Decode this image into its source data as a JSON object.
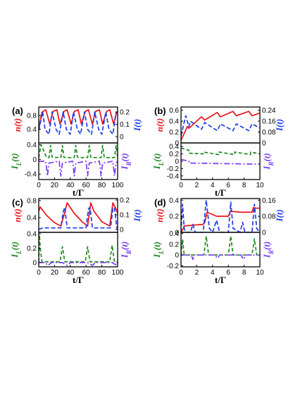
{
  "colors": {
    "n": "#e8141b",
    "I": "#1f3de6",
    "IL": "#1f8a1f",
    "IR": "#7a3df0"
  },
  "chart_data": [
    {
      "type": "line",
      "panel_label": "(a)",
      "xlabel": "t/Γ",
      "xlim": [
        0,
        100
      ],
      "x_ticks": [
        "0",
        "20",
        "40",
        "60",
        "80",
        "100"
      ],
      "top_left_axis": {
        "label": "n(t)",
        "ylim": [
          0.0,
          1.05
        ],
        "ticks": [
          "0.8",
          "0.4"
        ],
        "tick_values": [
          0.8,
          0.4
        ]
      },
      "top_right_axis": {
        "label": "I(t)",
        "ylim": [
          -0.05,
          0.24
        ],
        "ticks": [
          "0.2",
          "0.1",
          "0"
        ],
        "tick_values": [
          0.2,
          0.1,
          0
        ]
      },
      "bottom_left_axis": {
        "label": "I_L(t)",
        "ylim": [
          -0.55,
          0.45
        ],
        "ticks": [
          "0.4",
          "0",
          "-0.4"
        ],
        "tick_values": [
          0.4,
          0,
          -0.4
        ]
      },
      "bottom_right_axis": {
        "label": "I_R(t)"
      },
      "series": [
        {
          "name": "n(t)",
          "key": "n",
          "axis": "top_left",
          "x": [
            0,
            4,
            9,
            14,
            18,
            23,
            27,
            32,
            36,
            41,
            45,
            50,
            54,
            59,
            63,
            68,
            72,
            77,
            81,
            86,
            90,
            95,
            99
          ],
          "y": [
            0.4,
            0.9,
            0.97,
            0.55,
            0.92,
            0.97,
            0.55,
            0.92,
            0.97,
            0.55,
            0.92,
            0.97,
            0.55,
            0.92,
            0.97,
            0.55,
            0.92,
            0.97,
            0.55,
            0.92,
            0.97,
            0.55,
            0.92
          ]
        },
        {
          "name": "I(t)",
          "key": "I",
          "axis": "top_right",
          "x": [
            0,
            5,
            8,
            13,
            17,
            22,
            26,
            31,
            35,
            40,
            44,
            49,
            53,
            58,
            62,
            67,
            71,
            76,
            80,
            85,
            89,
            94,
            98
          ],
          "y": [
            0.05,
            0.2,
            0.06,
            0.02,
            0.2,
            0.06,
            0.02,
            0.2,
            0.06,
            0.02,
            0.2,
            0.06,
            0.02,
            0.2,
            0.06,
            0.02,
            0.2,
            0.06,
            0.02,
            0.2,
            0.06,
            0.02,
            0.2
          ]
        },
        {
          "name": "I_L(t)",
          "key": "IL",
          "axis": "bottom_left",
          "x": [
            0,
            3,
            10,
            13,
            15,
            17,
            28,
            30,
            32,
            34,
            45,
            47,
            49,
            51,
            62,
            64,
            66,
            68,
            79,
            81,
            83,
            85,
            96,
            98,
            100
          ],
          "y": [
            0.05,
            0.4,
            0.05,
            0.05,
            0.38,
            0.06,
            0.05,
            0.38,
            0.06,
            0.05,
            0.05,
            0.38,
            0.06,
            0.05,
            0.05,
            0.38,
            0.06,
            0.05,
            0.05,
            0.38,
            0.06,
            0.05,
            0.05,
            0.38,
            0.06
          ]
        },
        {
          "name": "I_R(t)",
          "key": "IR",
          "axis": "bottom_left",
          "x": [
            0,
            9,
            11,
            13,
            26,
            28,
            30,
            43,
            45,
            47,
            60,
            62,
            64,
            77,
            79,
            81,
            94,
            96,
            98,
            100
          ],
          "y": [
            -0.05,
            -0.05,
            -0.45,
            -0.1,
            -0.05,
            -0.45,
            -0.1,
            -0.05,
            -0.45,
            -0.1,
            -0.05,
            -0.45,
            -0.1,
            -0.05,
            -0.45,
            -0.1,
            -0.05,
            -0.45,
            -0.1,
            -0.05
          ]
        }
      ]
    },
    {
      "type": "line",
      "panel_label": "(b)",
      "xlabel": "t/Γ",
      "xlim": [
        0,
        10
      ],
      "x_ticks": [
        "0",
        "2",
        "4",
        "6",
        "8",
        "10"
      ],
      "top_left_axis": {
        "label": "n(t)",
        "ylim": [
          0,
          0.66
        ],
        "ticks": [
          "0.6",
          "0.4",
          "0.2",
          "0"
        ],
        "tick_values": [
          0.6,
          0.4,
          0.2,
          0
        ]
      },
      "top_right_axis": {
        "label": "I(t)",
        "ylim": [
          0,
          0.264
        ],
        "ticks": [
          "0.24",
          "0.16",
          "0.08",
          "0"
        ],
        "tick_values": [
          0.24,
          0.16,
          0.08,
          0
        ]
      },
      "bottom_left_axis": {
        "label": "I_L(t)",
        "ylim": [
          -0.5,
          0.5
        ],
        "ticks": [
          "0.4",
          "0.2",
          "0",
          "-0.2",
          "-0.4"
        ],
        "tick_values": [
          0.4,
          0.2,
          0,
          -0.2,
          -0.4
        ]
      },
      "bottom_right_axis": {
        "label": "I_R(t)"
      },
      "series": [
        {
          "name": "n(t)",
          "key": "n",
          "axis": "top_left",
          "x": [
            0,
            0.8,
            1.0,
            2.6,
            3.0,
            4.6,
            5.0,
            6.6,
            7.0,
            8.6,
            9.0,
            10
          ],
          "y": [
            0.05,
            0.3,
            0.27,
            0.48,
            0.42,
            0.56,
            0.48,
            0.58,
            0.5,
            0.58,
            0.5,
            0.55
          ]
        },
        {
          "name": "I(t)",
          "key": "I",
          "axis": "top_right",
          "x": [
            0,
            0.6,
            1.0,
            1.2,
            2.6,
            3.0,
            4.6,
            5.0,
            6.6,
            7.0,
            8.6,
            9.0,
            10
          ],
          "y": [
            0.05,
            0.2,
            0.12,
            0.16,
            0.1,
            0.15,
            0.09,
            0.14,
            0.09,
            0.14,
            0.09,
            0.14,
            0.11
          ]
        },
        {
          "name": "I_L(t)",
          "key": "IL",
          "axis": "bottom_left",
          "x": [
            0,
            0.2,
            1.0,
            1.02,
            2.8,
            2.82,
            4.8,
            4.82,
            6.8,
            6.82,
            8.8,
            8.82,
            10
          ],
          "y": [
            0.35,
            0.35,
            0.3,
            0.22,
            0.2,
            0.25,
            0.18,
            0.25,
            0.18,
            0.25,
            0.18,
            0.25,
            0.2
          ]
        },
        {
          "name": "I_R(t)",
          "key": "IR",
          "axis": "bottom_left",
          "x": [
            0,
            1.0,
            1.02,
            10
          ],
          "y": [
            0.05,
            0.0,
            -0.05,
            -0.08
          ]
        }
      ]
    },
    {
      "type": "line",
      "panel_label": "(c)",
      "xlabel": "t/Γ",
      "xlim": [
        0,
        100
      ],
      "x_ticks": [
        "0",
        "20",
        "40",
        "60",
        "80",
        "100"
      ],
      "top_left_axis": {
        "label": "n(t)",
        "ylim": [
          0.05,
          0.85
        ],
        "ticks": [
          "0.8",
          "0.4"
        ],
        "tick_values": [
          0.8,
          0.4
        ]
      },
      "top_right_axis": {
        "label": "I(t)",
        "ylim": [
          -0.02,
          0.21
        ],
        "ticks": [
          "0.2",
          "0.1",
          "0"
        ],
        "tick_values": [
          0.2,
          0.1,
          0
        ]
      },
      "bottom_left_axis": {
        "label": "I_L(t)",
        "ylim": [
          -0.06,
          0.42
        ],
        "ticks": [
          "0.4",
          "0.2",
          "0"
        ],
        "tick_values": [
          0.4,
          0.2,
          0
        ]
      },
      "bottom_right_axis": {
        "label": "I_R(t)"
      },
      "series": [
        {
          "name": "n(t)",
          "key": "n",
          "axis": "top_left",
          "x": [
            0,
            2,
            10,
            20,
            28,
            32,
            36,
            45,
            55,
            62,
            66,
            70,
            80,
            90,
            94,
            98,
            100
          ],
          "y": [
            0.55,
            0.65,
            0.45,
            0.28,
            0.2,
            0.45,
            0.75,
            0.5,
            0.3,
            0.2,
            0.75,
            0.55,
            0.3,
            0.2,
            0.75,
            0.6,
            0.5
          ]
        },
        {
          "name": "I(t)",
          "key": "I",
          "axis": "top_right",
          "x": [
            0,
            5,
            28,
            31,
            33,
            36,
            60,
            63,
            65,
            68,
            91,
            94,
            96,
            99,
            100
          ],
          "y": [
            0.0,
            0.01,
            0.01,
            0.12,
            0.15,
            0.01,
            0.01,
            0.14,
            0.15,
            0.01,
            0.01,
            0.14,
            0.15,
            0.01,
            0.01
          ]
        },
        {
          "name": "I_L(t)",
          "key": "IL",
          "axis": "bottom_left",
          "x": [
            0,
            1,
            2,
            4,
            27,
            30,
            33,
            59,
            62,
            65,
            90,
            93,
            96,
            100
          ],
          "y": [
            0.01,
            0.38,
            0.2,
            0.01,
            0.01,
            0.22,
            0.01,
            0.01,
            0.22,
            0.01,
            0.01,
            0.24,
            0.01,
            0.01
          ]
        },
        {
          "name": "I_R(t)",
          "key": "IR",
          "axis": "bottom_left",
          "x": [
            0,
            8,
            12,
            16,
            30,
            36,
            40,
            62,
            68,
            72,
            93,
            99,
            100
          ],
          "y": [
            0.0,
            0.0,
            -0.04,
            0.0,
            0.0,
            -0.04,
            0.0,
            0.0,
            -0.04,
            0.0,
            0.0,
            -0.04,
            0.0
          ]
        }
      ]
    },
    {
      "type": "line",
      "panel_label": "(d)",
      "xlabel": "t/Γ",
      "xlim": [
        0,
        10
      ],
      "x_ticks": [
        "0",
        "2",
        "4",
        "6",
        "8",
        "10"
      ],
      "top_left_axis": {
        "label": "n(t)",
        "ylim": [
          0,
          0.42
        ],
        "ticks": [
          "0.4",
          "0.2",
          "0"
        ],
        "tick_values": [
          0.4,
          0.2,
          0
        ]
      },
      "top_right_axis": {
        "label": "I(t)",
        "ylim": [
          0,
          0.168
        ],
        "ticks": [
          "0.16",
          "0.08",
          "0"
        ],
        "tick_values": [
          0.16,
          0.08,
          0
        ]
      },
      "bottom_left_axis": {
        "label": "I_L(t)",
        "ylim": [
          -0.22,
          0.42
        ],
        "ticks": [
          "0.4",
          "0.2",
          "0",
          "-0.2"
        ],
        "tick_values": [
          0.4,
          0.2,
          0,
          -0.2
        ]
      },
      "bottom_right_axis": {
        "label": "I_R(t)"
      },
      "series": [
        {
          "name": "n(t)",
          "key": "n",
          "axis": "top_left",
          "x": [
            0,
            0.3,
            0.4,
            2.8,
            3.0,
            3.3,
            4.5,
            6.0,
            6.3,
            6.5,
            7.5,
            9.0,
            9.2,
            9.5,
            10
          ],
          "y": [
            0.0,
            0.05,
            0.08,
            0.1,
            0.12,
            0.25,
            0.2,
            0.2,
            0.27,
            0.26,
            0.25,
            0.25,
            0.31,
            0.3,
            0.3
          ]
        },
        {
          "name": "I(t)",
          "key": "I",
          "axis": "top_right",
          "x": [
            0,
            0.2,
            0.4,
            0.6,
            1.2,
            1.5,
            1.8,
            2.8,
            3.2,
            3.6,
            4.0,
            4.5,
            4.9,
            6.0,
            6.3,
            6.6,
            7.5,
            7.8,
            8.1,
            9.0,
            9.3,
            9.6,
            10
          ],
          "y": [
            0.0,
            0.14,
            0.02,
            0.0,
            0.0,
            0.04,
            0.0,
            0.0,
            0.16,
            0.02,
            0.0,
            0.06,
            0.0,
            0.0,
            0.15,
            0.02,
            0.0,
            0.05,
            0.0,
            0.0,
            0.14,
            0.02,
            0.0
          ]
        },
        {
          "name": "I_L(t)",
          "key": "IL",
          "axis": "bottom_left",
          "x": [
            0,
            0.2,
            0.4,
            2.9,
            3.2,
            3.5,
            6.0,
            6.3,
            6.6,
            9.0,
            9.3,
            9.6,
            10
          ],
          "y": [
            0.0,
            0.3,
            0.0,
            0.0,
            0.35,
            0.0,
            0.0,
            0.35,
            0.0,
            0.0,
            0.3,
            0.0,
            0.0
          ]
        },
        {
          "name": "I_R(t)",
          "key": "IR",
          "axis": "bottom_left",
          "x": [
            0,
            1.3,
            1.5,
            1.7,
            4.3,
            4.6,
            4.9,
            7.6,
            7.9,
            8.2,
            10
          ],
          "y": [
            0.0,
            0.0,
            -0.08,
            0.0,
            0.0,
            -0.06,
            0.0,
            0.0,
            -0.08,
            0.0,
            0.0
          ]
        }
      ]
    }
  ]
}
